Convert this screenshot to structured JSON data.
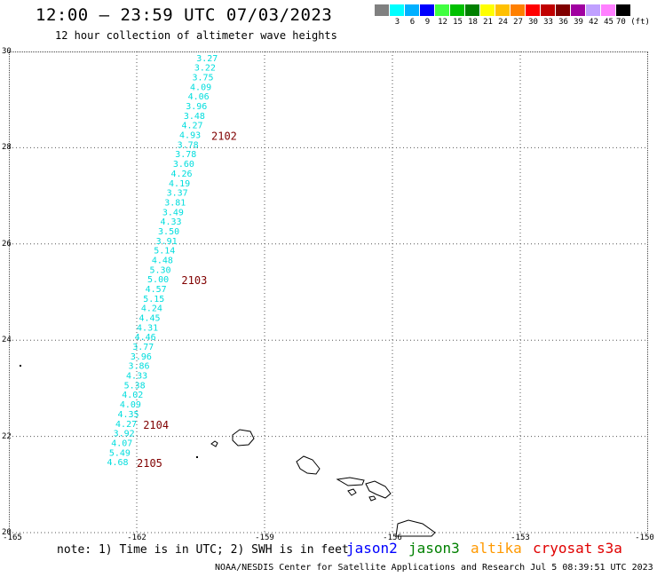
{
  "title": "12:00 — 23:59 UTC 07/03/2023",
  "subtitle": "12 hour collection of altimeter wave heights",
  "legend": {
    "colors": [
      "#808080",
      "#00ffff",
      "#00b0ff",
      "#0000ff",
      "#40ff40",
      "#00c000",
      "#008000",
      "#ffff00",
      "#ffc000",
      "#ff8000",
      "#ff0000",
      "#c00000",
      "#800000",
      "#a000a0",
      "#c0a0ff",
      "#ff80ff",
      "#000000"
    ],
    "labels": [
      "",
      "3",
      "6",
      "9",
      "12",
      "15",
      "18",
      "21",
      "24",
      "27",
      "30",
      "33",
      "36",
      "39",
      "42",
      "45",
      "70 (ft)"
    ]
  },
  "axes": {
    "lat_labels": [
      "30",
      "28",
      "26",
      "24",
      "22",
      "20"
    ],
    "lon_labels": [
      "-165",
      "-162",
      "-159",
      "-156",
      "-153",
      "-150"
    ]
  },
  "track": {
    "color": "#00dddd",
    "points": [
      {
        "lat": 29.8,
        "lon": -160.62,
        "swh": "3.27"
      },
      {
        "lat": 29.6,
        "lon": -160.67,
        "swh": "3.22"
      },
      {
        "lat": 29.4,
        "lon": -160.72,
        "swh": "3.75"
      },
      {
        "lat": 29.2,
        "lon": -160.77,
        "swh": "4.09"
      },
      {
        "lat": 29.0,
        "lon": -160.82,
        "swh": "4.06"
      },
      {
        "lat": 28.8,
        "lon": -160.87,
        "swh": "3.96"
      },
      {
        "lat": 28.6,
        "lon": -160.92,
        "swh": "3.48"
      },
      {
        "lat": 28.4,
        "lon": -160.97,
        "swh": "4.27"
      },
      {
        "lat": 28.2,
        "lon": -161.02,
        "swh": "4.93"
      },
      {
        "lat": 28.0,
        "lon": -161.07,
        "swh": "3.78"
      },
      {
        "lat": 27.8,
        "lon": -161.12,
        "swh": "3.78"
      },
      {
        "lat": 27.6,
        "lon": -161.17,
        "swh": "3.60"
      },
      {
        "lat": 27.4,
        "lon": -161.22,
        "swh": "4.26"
      },
      {
        "lat": 27.2,
        "lon": -161.27,
        "swh": "4.19"
      },
      {
        "lat": 27.0,
        "lon": -161.32,
        "swh": "3.37"
      },
      {
        "lat": 26.8,
        "lon": -161.37,
        "swh": "3.81"
      },
      {
        "lat": 26.6,
        "lon": -161.42,
        "swh": "3.49"
      },
      {
        "lat": 26.4,
        "lon": -161.47,
        "swh": "4.33"
      },
      {
        "lat": 26.2,
        "lon": -161.52,
        "swh": "3.50"
      },
      {
        "lat": 26.0,
        "lon": -161.57,
        "swh": "3.91"
      },
      {
        "lat": 25.8,
        "lon": -161.62,
        "swh": "5.14"
      },
      {
        "lat": 25.6,
        "lon": -161.67,
        "swh": "4.48"
      },
      {
        "lat": 25.4,
        "lon": -161.72,
        "swh": "5.30"
      },
      {
        "lat": 25.2,
        "lon": -161.77,
        "swh": "5.00"
      },
      {
        "lat": 25.0,
        "lon": -161.82,
        "swh": "4.57"
      },
      {
        "lat": 24.8,
        "lon": -161.87,
        "swh": "5.15"
      },
      {
        "lat": 24.6,
        "lon": -161.92,
        "swh": "4.24"
      },
      {
        "lat": 24.4,
        "lon": -161.97,
        "swh": "4.45"
      },
      {
        "lat": 24.2,
        "lon": -162.02,
        "swh": "4.31"
      },
      {
        "lat": 24.0,
        "lon": -162.07,
        "swh": "4.46"
      },
      {
        "lat": 23.8,
        "lon": -162.12,
        "swh": "3.77"
      },
      {
        "lat": 23.6,
        "lon": -162.17,
        "swh": "3.96"
      },
      {
        "lat": 23.4,
        "lon": -162.22,
        "swh": "3.86"
      },
      {
        "lat": 23.2,
        "lon": -162.27,
        "swh": "4.33"
      },
      {
        "lat": 23.0,
        "lon": -162.32,
        "swh": "5.38"
      },
      {
        "lat": 22.8,
        "lon": -162.37,
        "swh": "4.02"
      },
      {
        "lat": 22.6,
        "lon": -162.42,
        "swh": "4.09"
      },
      {
        "lat": 22.4,
        "lon": -162.47,
        "swh": "4.35"
      },
      {
        "lat": 22.2,
        "lon": -162.52,
        "swh": "4.27"
      },
      {
        "lat": 22.0,
        "lon": -162.57,
        "swh": "3.92"
      },
      {
        "lat": 21.8,
        "lon": -162.62,
        "swh": "4.07"
      },
      {
        "lat": 21.6,
        "lon": -162.67,
        "swh": "5.49"
      },
      {
        "lat": 21.4,
        "lon": -162.72,
        "swh": "4.68"
      }
    ]
  },
  "time_labels": [
    {
      "lat": 28.2,
      "lon": -160.25,
      "text": "2102"
    },
    {
      "lat": 25.2,
      "lon": -160.95,
      "text": "2103"
    },
    {
      "lat": 22.2,
      "lon": -161.85,
      "text": "2104"
    },
    {
      "lat": 21.4,
      "lon": -162.0,
      "text": "2105"
    }
  ],
  "time_label_color": "#800000",
  "note": "note: 1) Time is in UTC; 2) SWH is in feet",
  "satellites": [
    {
      "name": "jason2",
      "color": "#0000ff"
    },
    {
      "name": "jason3",
      "color": "#008000"
    },
    {
      "name": "altika",
      "color": "#ff9900"
    },
    {
      "name": "cryosat",
      "color": "#e00000"
    },
    {
      "name": "s3a",
      "color": "#e00000"
    }
  ],
  "credit": "NOAA/NESDIS Center for Satellite Applications and Research   Jul  5 08:39:51 UTC 2023"
}
